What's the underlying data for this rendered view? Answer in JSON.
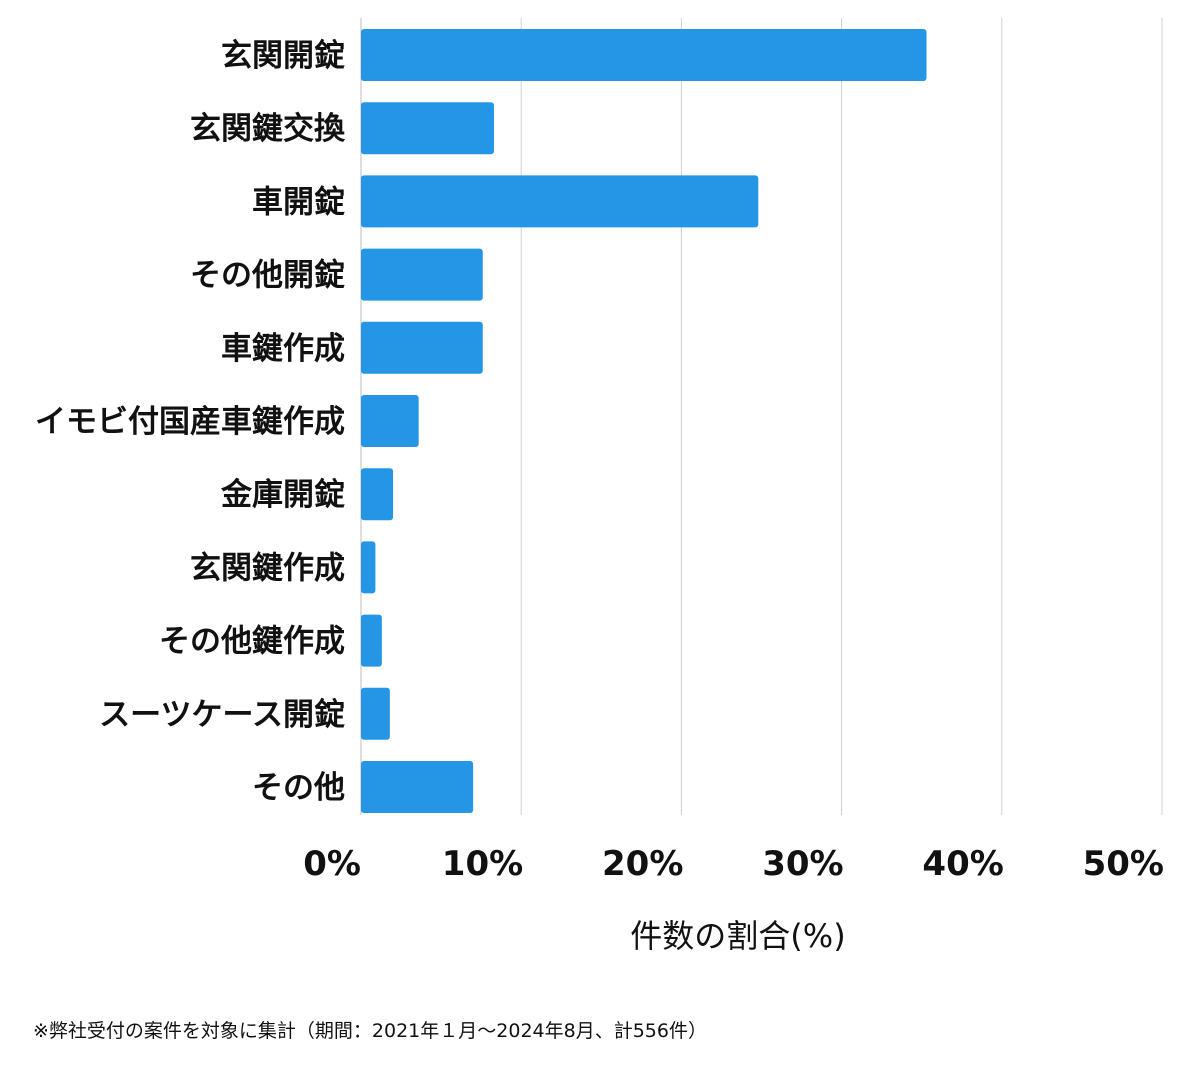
{
  "chart_data": {
    "type": "bar",
    "orientation": "horizontal",
    "categories": [
      "玄関開錠",
      "玄関鍵交換",
      "車開錠",
      "その他開錠",
      "車鍵作成",
      "イモビ付国産車鍵作成",
      "金庫開錠",
      "玄関鍵作成",
      "その他鍵作成",
      "スーツケース開錠",
      "その他"
    ],
    "values": [
      35.3,
      8.3,
      24.8,
      7.6,
      7.6,
      3.6,
      2.0,
      0.9,
      1.3,
      1.8,
      7.0
    ],
    "xlim": [
      0,
      50
    ],
    "xticks": [
      0,
      10,
      20,
      30,
      40,
      50
    ],
    "xtick_suffix": "%",
    "xlabel": "件数の割合(%)",
    "ylabel": "",
    "title": "",
    "grid": "vertical",
    "bar_color": "#2596e6",
    "grid_color": "#d0d0d0"
  },
  "footnote": "※弊社受付の案件を対象に集計（期間：2021年１月〜2024年8月、計556件）"
}
